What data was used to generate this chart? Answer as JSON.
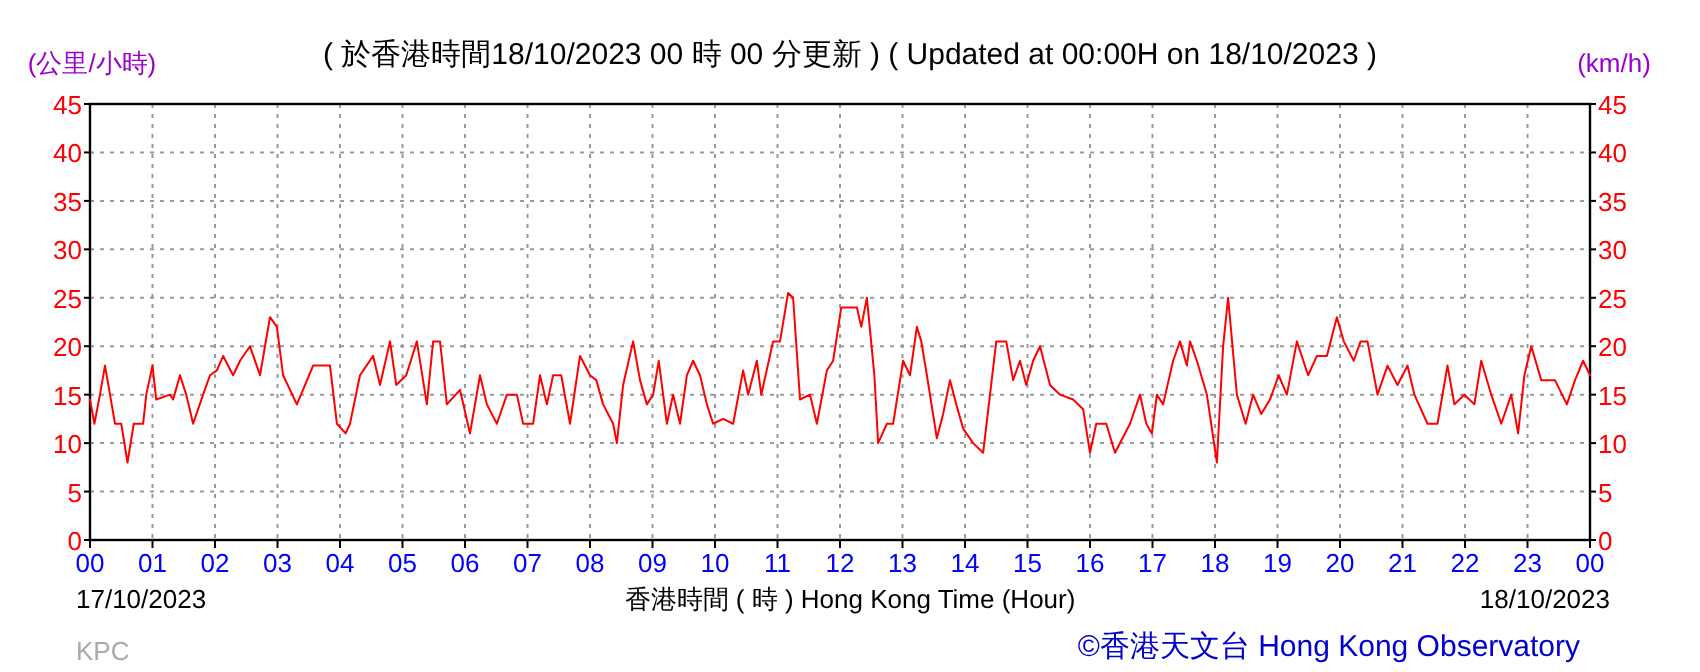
{
  "chart_data": {
    "type": "line",
    "title": "( 於香港時間18/10/2023 00 時 00 分更新 ) ( Updated at 00:00H on 18/10/2023 )",
    "xlabel": "香港時間 ( 時 ) Hong Kong Time (Hour)",
    "ylabel": "(公里/小時)",
    "y2label": "(km/h)",
    "annotations": [
      "17/10/2023",
      "18/10/2023",
      "KPC",
      "©香港天文台 Hong Kong Observatory"
    ],
    "xlim": [
      0,
      24
    ],
    "xticks": [
      {
        "value": 0,
        "label": "00"
      },
      {
        "value": 1,
        "label": "01"
      },
      {
        "value": 2,
        "label": "02"
      },
      {
        "value": 3,
        "label": "03"
      },
      {
        "value": 4,
        "label": "04"
      },
      {
        "value": 5,
        "label": "05"
      },
      {
        "value": 6,
        "label": "06"
      },
      {
        "value": 7,
        "label": "07"
      },
      {
        "value": 8,
        "label": "08"
      },
      {
        "value": 9,
        "label": "09"
      },
      {
        "value": 10,
        "label": "10"
      },
      {
        "value": 11,
        "label": "11"
      },
      {
        "value": 12,
        "label": "12"
      },
      {
        "value": 13,
        "label": "13"
      },
      {
        "value": 14,
        "label": "14"
      },
      {
        "value": 15,
        "label": "15"
      },
      {
        "value": 16,
        "label": "16"
      },
      {
        "value": 17,
        "label": "17"
      },
      {
        "value": 18,
        "label": "18"
      },
      {
        "value": 19,
        "label": "19"
      },
      {
        "value": 20,
        "label": "20"
      },
      {
        "value": 21,
        "label": "21"
      },
      {
        "value": 22,
        "label": "22"
      },
      {
        "value": 23,
        "label": "23"
      },
      {
        "value": 24,
        "label": "00"
      }
    ],
    "ylim": [
      0,
      45
    ],
    "yticks": [
      0,
      5,
      10,
      15,
      20,
      25,
      30,
      35,
      40,
      45
    ],
    "y2lim": [
      0,
      45
    ],
    "y2ticks": [
      0,
      5,
      10,
      15,
      20,
      25,
      30,
      35,
      40,
      45
    ],
    "grid": true,
    "series": [
      {
        "color": "#ff0000",
        "x": [
          0,
          0.07,
          0.16,
          0.24,
          0.32,
          0.4,
          0.5,
          0.6,
          0.7,
          0.85,
          0.9,
          1.0,
          1.06,
          1.28,
          1.33,
          1.44,
          1.54,
          1.65,
          1.81,
          1.92,
          2.03,
          2.13,
          2.29,
          2.4,
          2.56,
          2.72,
          2.88,
          2.99,
          3.09,
          3.31,
          3.57,
          3.84,
          3.95,
          4.09,
          4.16,
          4.32,
          4.53,
          4.64,
          4.8,
          4.9,
          5.06,
          5.23,
          5.39,
          5.49,
          5.6,
          5.71,
          5.92,
          6.08,
          6.24,
          6.35,
          6.51,
          6.67,
          6.83,
          6.93,
          7.09,
          7.2,
          7.31,
          7.41,
          7.54,
          7.68,
          7.84,
          8.0,
          8.1,
          8.21,
          8.37,
          8.43,
          8.53,
          8.69,
          8.8,
          8.91,
          9.01,
          9.1,
          9.23,
          9.33,
          9.44,
          9.55,
          9.65,
          9.76,
          9.87,
          9.97,
          10.13,
          10.29,
          10.45,
          10.53,
          10.67,
          10.74,
          10.93,
          11.04,
          11.17,
          11.25,
          11.36,
          11.52,
          11.63,
          11.79,
          11.89,
          12.02,
          12.13,
          12.27,
          12.34,
          12.43,
          12.55,
          12.61,
          12.75,
          12.85,
          13.01,
          13.12,
          13.23,
          13.3,
          13.39,
          13.55,
          13.65,
          13.76,
          13.86,
          13.97,
          14.13,
          14.29,
          14.4,
          14.5,
          14.66,
          14.77,
          14.88,
          14.98,
          15.09,
          15.2,
          15.36,
          15.52,
          15.73,
          15.89,
          16.0,
          16.1,
          16.26,
          16.4,
          16.64,
          16.8,
          16.9,
          16.99,
          17.07,
          17.17,
          17.33,
          17.44,
          17.55,
          17.6,
          17.71,
          17.87,
          18.03,
          18.13,
          18.21,
          18.35,
          18.49,
          18.61,
          18.74,
          18.88,
          19.02,
          19.15,
          19.31,
          19.49,
          19.63,
          19.79,
          19.95,
          20.06,
          20.22,
          20.33,
          20.44,
          20.6,
          20.76,
          20.92,
          21.08,
          21.19,
          21.4,
          21.56,
          21.72,
          21.83,
          21.99,
          22.15,
          22.26,
          22.42,
          22.58,
          22.74,
          22.85,
          22.95,
          23.06,
          23.22,
          23.44,
          23.63,
          23.76,
          23.89,
          24.0
        ],
        "values": [
          14.5,
          12,
          15,
          18,
          15,
          12,
          12,
          8,
          12,
          12,
          15,
          18,
          14.5,
          15,
          14.5,
          17,
          15,
          12,
          15,
          17,
          17.5,
          19,
          17,
          18.5,
          20,
          17,
          23,
          22,
          17,
          14,
          18,
          18,
          12,
          11,
          12,
          17,
          19,
          16,
          20.5,
          16,
          17,
          20.5,
          14,
          20.5,
          20.5,
          14,
          15.5,
          11,
          17,
          14,
          12,
          15,
          15,
          12,
          12,
          17,
          14,
          17,
          17,
          12,
          19,
          17,
          16.5,
          14,
          12,
          10,
          16,
          20.5,
          16.5,
          14,
          15,
          18.5,
          12,
          15,
          12,
          17,
          18.5,
          17,
          14,
          12,
          12.5,
          12,
          17.5,
          15,
          18.5,
          15,
          20.5,
          20.5,
          25.5,
          25,
          14.5,
          15,
          12,
          17.5,
          18.5,
          24,
          24,
          24,
          22,
          25,
          17,
          10,
          12,
          12,
          18.5,
          17,
          22,
          20.5,
          17,
          10.5,
          13,
          16.5,
          14,
          11.5,
          10,
          9,
          15,
          20.5,
          20.5,
          16.5,
          18.5,
          16,
          18.5,
          20,
          16,
          15,
          14.5,
          13.5,
          9,
          12,
          12,
          9,
          12,
          15,
          12,
          11,
          15,
          14,
          18.5,
          20.5,
          18,
          20.5,
          18.5,
          15,
          8,
          20,
          25,
          15,
          12,
          15,
          13,
          14.5,
          17,
          15,
          20.5,
          17,
          19,
          19,
          23,
          20.5,
          18.5,
          20.5,
          20.5,
          15,
          18,
          16,
          18,
          15,
          12,
          12,
          18,
          14,
          15,
          14,
          18.5,
          15,
          12,
          15,
          11,
          17,
          20,
          16.5,
          16.5,
          14,
          16.5,
          18.5,
          17
        ]
      }
    ]
  }
}
